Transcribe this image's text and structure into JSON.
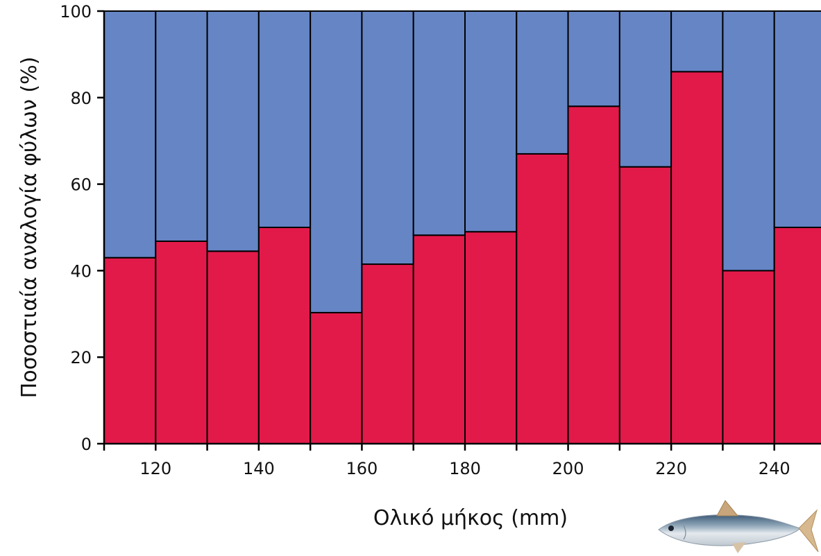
{
  "chart_data": {
    "type": "bar",
    "stacked": true,
    "title": "",
    "xlabel": "Ολικό μήκος (mm)",
    "ylabel": "Ποσοστιαία αναλογία φύλων (%)",
    "ylim": [
      0,
      100
    ],
    "xlim": [
      110,
      250
    ],
    "bin_width": 10,
    "bin_starts": [
      110,
      120,
      130,
      140,
      150,
      160,
      170,
      180,
      190,
      200,
      210,
      220,
      230,
      240
    ],
    "x_ticks": [
      120,
      140,
      160,
      180,
      200,
      220,
      240
    ],
    "y_ticks": [
      0,
      20,
      40,
      60,
      80,
      100
    ],
    "series": [
      {
        "values": [
          43,
          46.8,
          44.5,
          50,
          30.3,
          41.5,
          48.2,
          49,
          67,
          78,
          64,
          86,
          40,
          50
        ],
        "color": "#e21a4a"
      },
      {
        "values": [
          57,
          53.2,
          55.5,
          50,
          69.7,
          58.5,
          51.8,
          51,
          33,
          22,
          36,
          14,
          60,
          50
        ],
        "color": "#6585c5"
      }
    ],
    "grid": false,
    "legend": "none"
  }
}
